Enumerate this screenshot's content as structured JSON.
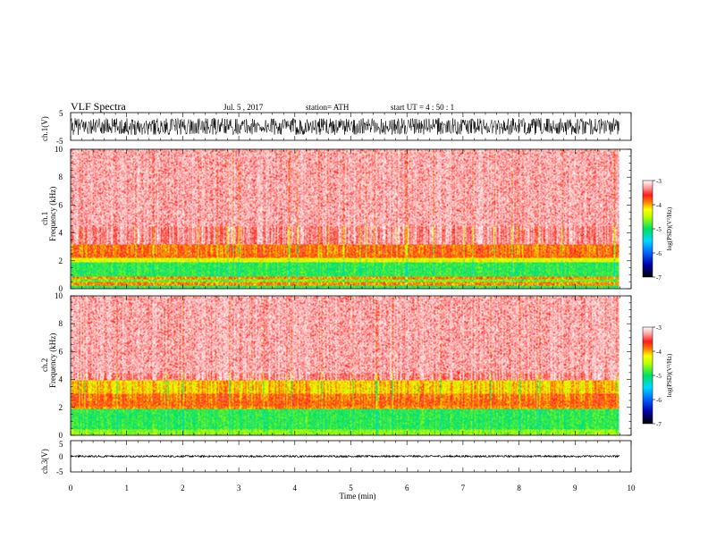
{
  "header": {
    "title": "VLF  Spectra",
    "date": "Jul.  5  , 2017",
    "station": "station= ATH",
    "start": "start  UT  =   4  : 50 : 1"
  },
  "chart_data": [
    {
      "type": "line",
      "panel": "ch1-waveform",
      "ylabel": "ch.1(V)",
      "ylim": [
        -5,
        5
      ],
      "yticks": [
        "5",
        "-5"
      ],
      "xlim": [
        0,
        10
      ],
      "trace_color": "#000000",
      "approx_amplitude_range": [
        -3,
        3
      ]
    },
    {
      "type": "heatmap",
      "panel": "ch1-spectrogram",
      "ylabel_line1": "ch.1",
      "ylabel_line2": "Frequency  (kHz)",
      "ylim": [
        0,
        10
      ],
      "yticks": [
        "0",
        "2",
        "4",
        "6",
        "8",
        "10"
      ],
      "xlim": [
        0,
        10
      ],
      "data_extent_min": 9.8,
      "frequency_bands": [
        {
          "from": 0,
          "to": 0.2,
          "value": -4.9
        },
        {
          "from": 0.2,
          "to": 0.5,
          "value": -3.9
        },
        {
          "from": 0.5,
          "to": 0.7,
          "value": -4.7
        },
        {
          "from": 0.7,
          "to": 0.85,
          "value": -3.9
        },
        {
          "from": 0.85,
          "to": 1.9,
          "value": -4.9
        },
        {
          "from": 1.9,
          "to": 2.2,
          "value": -4.3
        },
        {
          "from": 2.2,
          "to": 3.2,
          "value": -3.8
        },
        {
          "from": 3.2,
          "to": 10,
          "value": -3.3
        }
      ]
    },
    {
      "type": "heatmap",
      "panel": "ch2-spectrogram",
      "ylabel_line1": "ch.2",
      "ylabel_line2": "Frequency  (kHz)",
      "ylim": [
        0,
        10
      ],
      "yticks": [
        "0",
        "2",
        "4",
        "6",
        "8",
        "10"
      ],
      "xlim": [
        0,
        10
      ],
      "data_extent_min": 9.8,
      "frequency_bands": [
        {
          "from": 0,
          "to": 0.4,
          "value": -4.6
        },
        {
          "from": 0.4,
          "to": 1.9,
          "value": -4.9
        },
        {
          "from": 1.9,
          "to": 2.1,
          "value": -3.9
        },
        {
          "from": 2.1,
          "to": 3.0,
          "value": -3.8
        },
        {
          "from": 3.0,
          "to": 4.0,
          "value": -4.1
        },
        {
          "from": 4.0,
          "to": 10,
          "value": -3.3
        }
      ]
    },
    {
      "type": "line",
      "panel": "ch3-waveform",
      "ylabel": "ch.3(V)",
      "ylim": [
        -5,
        5
      ],
      "yticks": [
        "5",
        "0",
        "-5"
      ],
      "xlim": [
        0,
        10
      ],
      "trace_color": "#000000",
      "approx_level": 0,
      "approx_amplitude": 0.3,
      "xlabel": "Time  (min)",
      "xticks": [
        "0",
        "1",
        "2",
        "3",
        "4",
        "5",
        "6",
        "7",
        "8",
        "9",
        "10"
      ]
    }
  ],
  "colorbar": {
    "label": "log(PSD)(V²/Hz)",
    "range": [
      -7,
      -3
    ],
    "ticks": [
      "-3",
      "-4",
      "-5",
      "-6",
      "-7"
    ],
    "stops": [
      {
        "v": -7,
        "color": "#000000"
      },
      {
        "v": -6.5,
        "color": "#0000a8"
      },
      {
        "v": -6,
        "color": "#0060ff"
      },
      {
        "v": -5.5,
        "color": "#00d8ff"
      },
      {
        "v": -5,
        "color": "#00e060"
      },
      {
        "v": -4.5,
        "color": "#b8ff00"
      },
      {
        "v": -4.2,
        "color": "#ffff00"
      },
      {
        "v": -3.9,
        "color": "#ff8000"
      },
      {
        "v": -3.6,
        "color": "#ff1a1a"
      },
      {
        "v": -3.3,
        "color": "#ff9a9a"
      },
      {
        "v": -3,
        "color": "#ffffff"
      }
    ]
  }
}
